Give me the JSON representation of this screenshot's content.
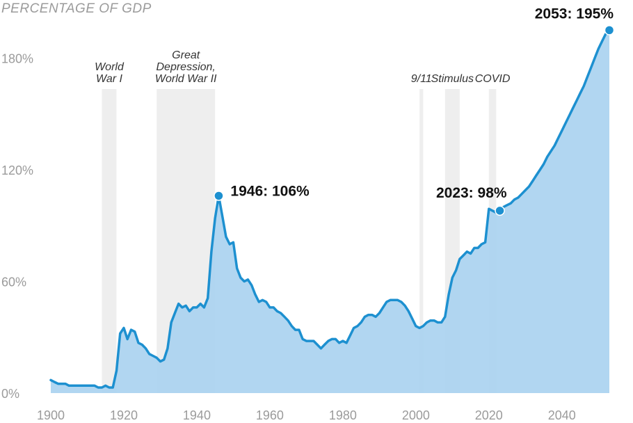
{
  "chart_data": {
    "type": "area",
    "ylabel": "PERCENTAGE OF GDP",
    "ylim": [
      0,
      210
    ],
    "xlim": [
      1900,
      2053
    ],
    "y_ticks": [
      "0%",
      "60%",
      "120%",
      "180%"
    ],
    "y_tick_values": [
      0,
      60,
      120,
      180
    ],
    "x_ticks": [
      "1900",
      "1920",
      "1940",
      "1960",
      "1980",
      "2000",
      "2020",
      "2040"
    ],
    "x_tick_values": [
      1900,
      1920,
      1940,
      1960,
      1980,
      2000,
      2020,
      2040
    ],
    "colors": {
      "line": "#1d90d0",
      "fill": "#a8d1ef",
      "shade": "#d9d9d9"
    },
    "events": [
      {
        "label": "World War I",
        "lines": [
          "World",
          "War I"
        ],
        "start": 1914,
        "end": 1918
      },
      {
        "label": "Great Depression, World War II",
        "lines": [
          "Great",
          "Depression,",
          "World War II"
        ],
        "start": 1929,
        "end": 1945
      },
      {
        "label": "9/11",
        "lines": [
          "9/11"
        ],
        "start": 2001,
        "end": 2002
      },
      {
        "label": "Stimulus",
        "lines": [
          "Stimulus"
        ],
        "start": 2008,
        "end": 2012
      },
      {
        "label": "COVID",
        "lines": [
          "COVID"
        ],
        "start": 2020,
        "end": 2022
      }
    ],
    "annotations": [
      {
        "label": "1946: 106%",
        "x": 1946,
        "y": 106
      },
      {
        "label": "2023: 98%",
        "x": 2023,
        "y": 98
      },
      {
        "label": "2053: 195%",
        "x": 2053,
        "y": 195
      }
    ],
    "x": [
      1900,
      1901,
      1902,
      1903,
      1904,
      1905,
      1906,
      1907,
      1908,
      1909,
      1910,
      1911,
      1912,
      1913,
      1914,
      1915,
      1916,
      1917,
      1918,
      1919,
      1920,
      1921,
      1922,
      1923,
      1924,
      1925,
      1926,
      1927,
      1928,
      1929,
      1930,
      1931,
      1932,
      1933,
      1934,
      1935,
      1936,
      1937,
      1938,
      1939,
      1940,
      1941,
      1942,
      1943,
      1944,
      1945,
      1946,
      1947,
      1948,
      1949,
      1950,
      1951,
      1952,
      1953,
      1954,
      1955,
      1956,
      1957,
      1958,
      1959,
      1960,
      1961,
      1962,
      1963,
      1964,
      1965,
      1966,
      1967,
      1968,
      1969,
      1970,
      1971,
      1972,
      1973,
      1974,
      1975,
      1976,
      1977,
      1978,
      1979,
      1980,
      1981,
      1982,
      1983,
      1984,
      1985,
      1986,
      1987,
      1988,
      1989,
      1990,
      1991,
      1992,
      1993,
      1994,
      1995,
      1996,
      1997,
      1998,
      1999,
      2000,
      2001,
      2002,
      2003,
      2004,
      2005,
      2006,
      2007,
      2008,
      2009,
      2010,
      2011,
      2012,
      2013,
      2014,
      2015,
      2016,
      2017,
      2018,
      2019,
      2020,
      2021,
      2022,
      2023,
      2024,
      2025,
      2026,
      2027,
      2028,
      2029,
      2030,
      2031,
      2032,
      2033,
      2034,
      2035,
      2036,
      2037,
      2038,
      2039,
      2040,
      2041,
      2042,
      2043,
      2044,
      2045,
      2046,
      2047,
      2048,
      2049,
      2050,
      2051,
      2052,
      2053
    ],
    "y": [
      7,
      6,
      5,
      5,
      5,
      4,
      4,
      4,
      4,
      4,
      4,
      4,
      4,
      3,
      3,
      4,
      3,
      3,
      12,
      32,
      35,
      29,
      34,
      33,
      27,
      26,
      24,
      21,
      20,
      19,
      17,
      18,
      24,
      38,
      43,
      48,
      46,
      47,
      44,
      46,
      46,
      48,
      46,
      51,
      76,
      94,
      106,
      95,
      84,
      80,
      81,
      67,
      62,
      60,
      61,
      58,
      53,
      49,
      50,
      49,
      46,
      46,
      44,
      43,
      41,
      39,
      36,
      34,
      34,
      29,
      28,
      28,
      28,
      26,
      24,
      26,
      28,
      29,
      29,
      27,
      28,
      27,
      31,
      35,
      36,
      38,
      41,
      42,
      42,
      41,
      43,
      46,
      49,
      50,
      50,
      50,
      49,
      47,
      44,
      40,
      36,
      35,
      36,
      38,
      39,
      39,
      38,
      38,
      41,
      53,
      62,
      66,
      72,
      74,
      76,
      75,
      78,
      78,
      80,
      81,
      99,
      98,
      97,
      98,
      100,
      101,
      102,
      104,
      105,
      107,
      109,
      111,
      114,
      117,
      120,
      123,
      127,
      130,
      133,
      137,
      141,
      145,
      149,
      153,
      157,
      161,
      165,
      170,
      175,
      180,
      185,
      189,
      193,
      195
    ]
  }
}
